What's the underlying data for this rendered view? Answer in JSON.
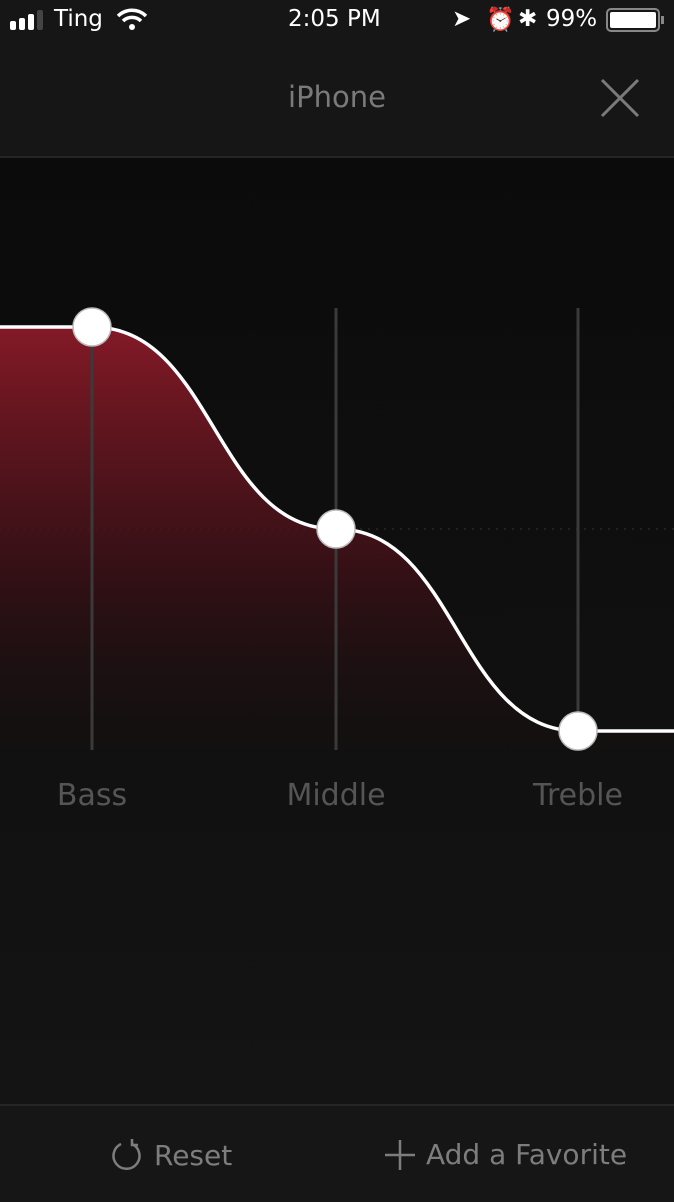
{
  "status_bar": {
    "carrier": "Ting",
    "time": "2:05 PM",
    "battery": "99%",
    "icons": [
      "signal-icon",
      "wifi-icon",
      "location-icon",
      "alarm-icon",
      "bluetooth-icon",
      "battery-icon"
    ]
  },
  "header": {
    "title": "iPhone",
    "close_icon": "close-icon"
  },
  "equalizer": {
    "level_range": [
      -1,
      1
    ],
    "bands": [
      {
        "label": "Bass",
        "level": 1
      },
      {
        "label": "Middle",
        "level": 0
      },
      {
        "label": "Treble",
        "level": -1
      }
    ],
    "colors": {
      "fill": "#8a1a28",
      "curve": "#ffffff",
      "track": "#3a3a3a"
    }
  },
  "footer": {
    "reset_label": "Reset",
    "favorite_label": "Add a Favorite"
  }
}
